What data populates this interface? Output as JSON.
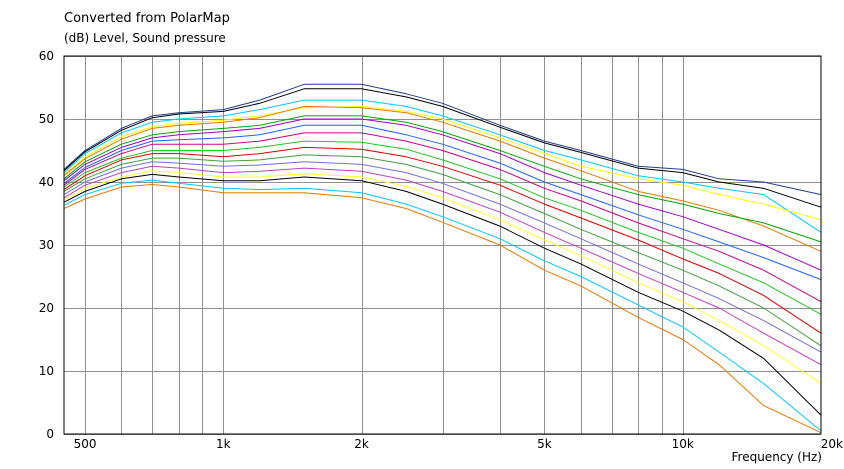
{
  "chart_data": {
    "type": "line",
    "title": "Converted from PolarMap",
    "ylabel": "(dB)  Level, Sound pressure",
    "xlabel": "Frequency  (Hz)",
    "x_scale": "log",
    "xlim": [
      450,
      20000
    ],
    "ylim": [
      0,
      60
    ],
    "x_ticks": [
      500,
      1000,
      2000,
      5000,
      10000,
      20000
    ],
    "x_tick_labels": [
      "500",
      "1k",
      "2k",
      "5k",
      "10k",
      "20k"
    ],
    "y_ticks": [
      0,
      10,
      20,
      30,
      40,
      50,
      60
    ],
    "y_tick_labels": [
      "0",
      "10",
      "20",
      "30",
      "40",
      "50",
      "60"
    ],
    "grid": true,
    "legend": "none",
    "x": [
      450,
      500,
      600,
      700,
      800,
      1000,
      1200,
      1500,
      2000,
      2500,
      3000,
      4000,
      5000,
      6000,
      8000,
      10000,
      12000,
      15000,
      20000
    ],
    "series": [
      {
        "color": "#1f3f8f",
        "values": [
          42,
          45,
          48.5,
          50.5,
          51,
          51.5,
          53,
          55.5,
          55.5,
          54,
          52.5,
          49,
          46.5,
          45,
          42.5,
          42,
          40.5,
          40,
          38
        ]
      },
      {
        "color": "#000000",
        "values": [
          41.8,
          44.8,
          48.2,
          50.2,
          50.8,
          51.2,
          52.5,
          54.8,
          54.8,
          53.5,
          52,
          48.7,
          46.2,
          44.7,
          42.2,
          41.5,
          40,
          39,
          36
        ]
      },
      {
        "color": "#00c8ff",
        "values": [
          41.5,
          44.5,
          47.8,
          49.5,
          50,
          50.5,
          51.5,
          53,
          53,
          52,
          50.5,
          47.5,
          45,
          43.5,
          41,
          40,
          39,
          38,
          32
        ]
      },
      {
        "color": "#ffff00",
        "values": [
          41.2,
          44,
          47.2,
          48.8,
          49.3,
          49.8,
          50.5,
          51.8,
          52,
          51.2,
          50,
          47,
          44.5,
          42.5,
          40.5,
          39.5,
          38,
          36.5,
          34
        ]
      },
      {
        "color": "#e87800",
        "values": [
          41,
          43.7,
          46.8,
          48.5,
          49,
          49.5,
          50.2,
          52,
          51.8,
          51,
          49.5,
          46.5,
          43.8,
          41.8,
          38.5,
          37,
          35.5,
          33,
          29
        ]
      },
      {
        "color": "#00aa00",
        "values": [
          40.5,
          43.2,
          46,
          47.5,
          48,
          48.5,
          49,
          50.5,
          50.5,
          49.5,
          48,
          45,
          42.5,
          40.5,
          38,
          36.5,
          35,
          33.5,
          30.5
        ]
      },
      {
        "color": "#a000c8",
        "values": [
          40.2,
          42.8,
          45.5,
          47,
          47.5,
          48,
          48.5,
          50,
          50,
          49,
          47.5,
          44.5,
          41.5,
          39.5,
          36.5,
          34.5,
          32.5,
          30,
          26
        ]
      },
      {
        "color": "#1e64ff",
        "values": [
          39.8,
          42.3,
          45,
          46.5,
          46.7,
          47,
          47.5,
          49,
          49,
          47.5,
          46,
          43,
          40,
          38,
          34.8,
          32.5,
          30.5,
          28,
          24.5
        ]
      },
      {
        "color": "#c8008c",
        "values": [
          39.5,
          42,
          44.5,
          46,
          46,
          46,
          46.5,
          47.8,
          47.8,
          46.5,
          45,
          42,
          39,
          37,
          33.5,
          31,
          29,
          26,
          21
        ]
      },
      {
        "color": "#22c622",
        "values": [
          39.2,
          41.5,
          43.8,
          45,
          45,
          45,
          45.5,
          46.5,
          46.3,
          45.2,
          43.5,
          40.5,
          37.5,
          35.5,
          32,
          29.5,
          27,
          24,
          19
        ]
      },
      {
        "color": "#e00000",
        "values": [
          38.8,
          41,
          43.5,
          44.5,
          44.5,
          44,
          44.5,
          45.5,
          45.2,
          44,
          42.5,
          39.5,
          36.5,
          34.3,
          30.8,
          27.8,
          25.5,
          22,
          16
        ]
      },
      {
        "color": "#40a040",
        "values": [
          38.5,
          40.5,
          42.8,
          43.8,
          43.8,
          43.3,
          43.5,
          44.3,
          44,
          42.8,
          41.2,
          38,
          35,
          32.5,
          28.8,
          26,
          23.5,
          20,
          14
        ]
      },
      {
        "color": "#7070e0",
        "values": [
          38,
          40,
          42.2,
          43.2,
          43,
          42.5,
          42.7,
          43.2,
          42.8,
          41.5,
          39.8,
          36.5,
          33.5,
          31,
          27,
          24,
          21.5,
          18,
          13
        ]
      },
      {
        "color": "#c040c0",
        "values": [
          37.5,
          39.5,
          41.5,
          42.5,
          42.2,
          41.5,
          41.7,
          42.2,
          41.7,
          40.3,
          38.5,
          35.2,
          32,
          29.5,
          25.5,
          22.5,
          20,
          16,
          11
        ]
      },
      {
        "color": "#ffff30",
        "values": [
          37.2,
          39,
          40.8,
          41.8,
          41.5,
          40.8,
          40.8,
          41.3,
          40.8,
          39.3,
          37.5,
          34,
          30.8,
          28.3,
          24,
          21,
          18,
          14,
          8
        ]
      },
      {
        "color": "#000000",
        "values": [
          36.8,
          38.5,
          40.5,
          41.2,
          40.8,
          40.2,
          40.2,
          40.8,
          40.2,
          38.5,
          36.5,
          33,
          29.5,
          27,
          22.5,
          19.5,
          16.5,
          12,
          3
        ]
      },
      {
        "color": "#00c8ff",
        "values": [
          36.3,
          38,
          39.8,
          40.3,
          39.8,
          39,
          38.8,
          39,
          38.3,
          36.5,
          34.5,
          31,
          27.5,
          25,
          20.5,
          17,
          13,
          8,
          0.5
        ]
      },
      {
        "color": "#e87800",
        "values": [
          35.8,
          37.3,
          39.2,
          39.6,
          39.2,
          38.3,
          38.3,
          38.3,
          37.5,
          35.8,
          33.6,
          30,
          26,
          23.5,
          18.5,
          15,
          11,
          4.5,
          0.2
        ]
      }
    ]
  }
}
